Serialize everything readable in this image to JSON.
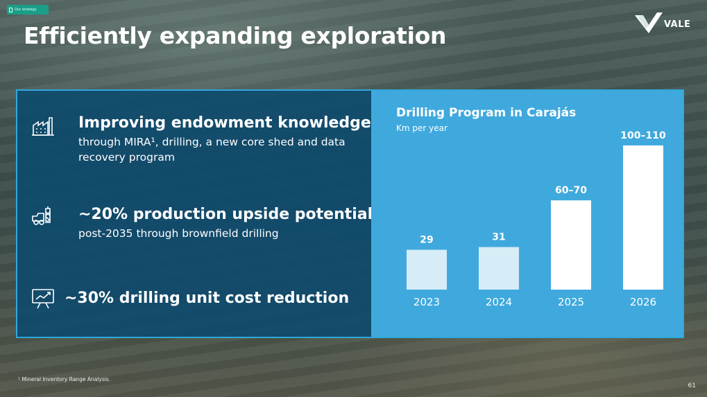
{
  "tag": {
    "label": "Our strategy"
  },
  "title": "Efficiently expanding exploration",
  "logo": {
    "text": "VALE"
  },
  "items": [
    {
      "icon": "factory-icon",
      "head": "Improving endowment knowledge",
      "sub": "through MIRA¹, drilling, a new core shed and data recovery program"
    },
    {
      "icon": "drill-truck-icon",
      "head": "~20% production upside potential",
      "sub": "post-2035 through brownfield drilling"
    },
    {
      "icon": "chart-presentation-icon",
      "head": "~30% drilling unit cost reduction",
      "sub": ""
    }
  ],
  "chart_data": {
    "type": "bar",
    "title": "Drilling Program in Carajás",
    "subtitle": "Km per year",
    "categories": [
      "2023",
      "2024",
      "2025",
      "2026"
    ],
    "values": [
      29,
      31,
      65,
      105
    ],
    "labels": [
      "29",
      "31",
      "60–70",
      "100–110"
    ],
    "bar_colors": [
      "#d6ecf7",
      "#d6ecf7",
      "#ffffff",
      "#ffffff"
    ],
    "ylim": [
      0,
      110
    ],
    "grid": false
  },
  "footnote": "¹ Mineral Inventory Range Analysis.",
  "page_number": "61",
  "colors": {
    "accent": "#2ea9dc",
    "panel_dark": "#0c4a6e",
    "panel_light": "#3fa9dd",
    "tag": "#1b9e88"
  }
}
